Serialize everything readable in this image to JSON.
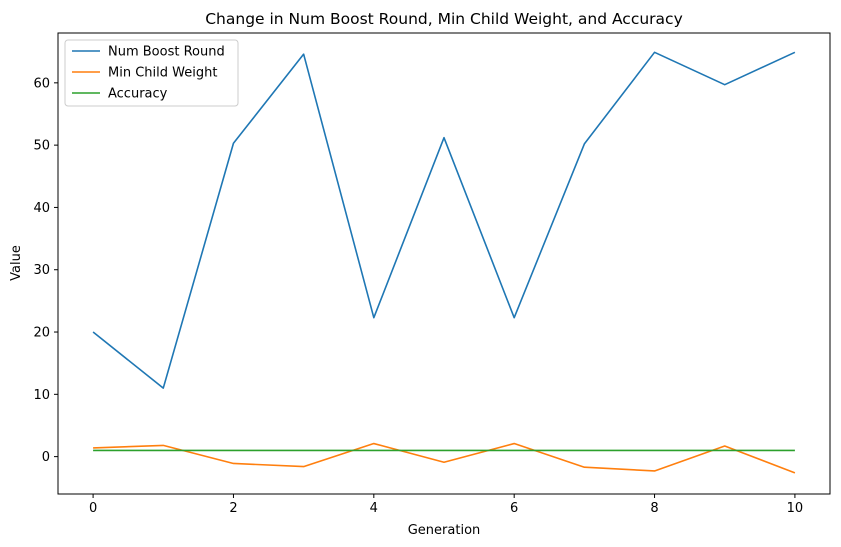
{
  "chart_data": {
    "type": "line",
    "title": "Change in Num Boost Round, Min Child Weight, and Accuracy",
    "xlabel": "Generation",
    "ylabel": "Value",
    "xlim": [
      -0.5,
      10.5
    ],
    "ylim": [
      -6,
      68
    ],
    "xticks": [
      0,
      2,
      4,
      6,
      8,
      10
    ],
    "yticks": [
      0,
      10,
      20,
      30,
      40,
      50,
      60
    ],
    "grid": false,
    "legend_position": "top-left",
    "x": [
      0,
      1,
      2,
      3,
      4,
      5,
      6,
      7,
      8,
      9,
      10
    ],
    "series": [
      {
        "name": "Num Boost Round",
        "color": "#1f77b4",
        "values": [
          20,
          11,
          50.3,
          64.6,
          22.3,
          51.2,
          22.3,
          50.2,
          64.9,
          59.7,
          64.9
        ]
      },
      {
        "name": "Min Child Weight",
        "color": "#ff7f0e",
        "values": [
          1.4,
          1.8,
          -1.1,
          -1.6,
          2.1,
          -0.9,
          2.1,
          -1.7,
          -2.3,
          1.7,
          -2.6
        ]
      },
      {
        "name": "Accuracy",
        "color": "#2ca02c",
        "values": [
          1,
          1,
          1,
          1,
          1,
          1,
          1,
          1,
          1,
          1,
          1
        ]
      }
    ]
  }
}
